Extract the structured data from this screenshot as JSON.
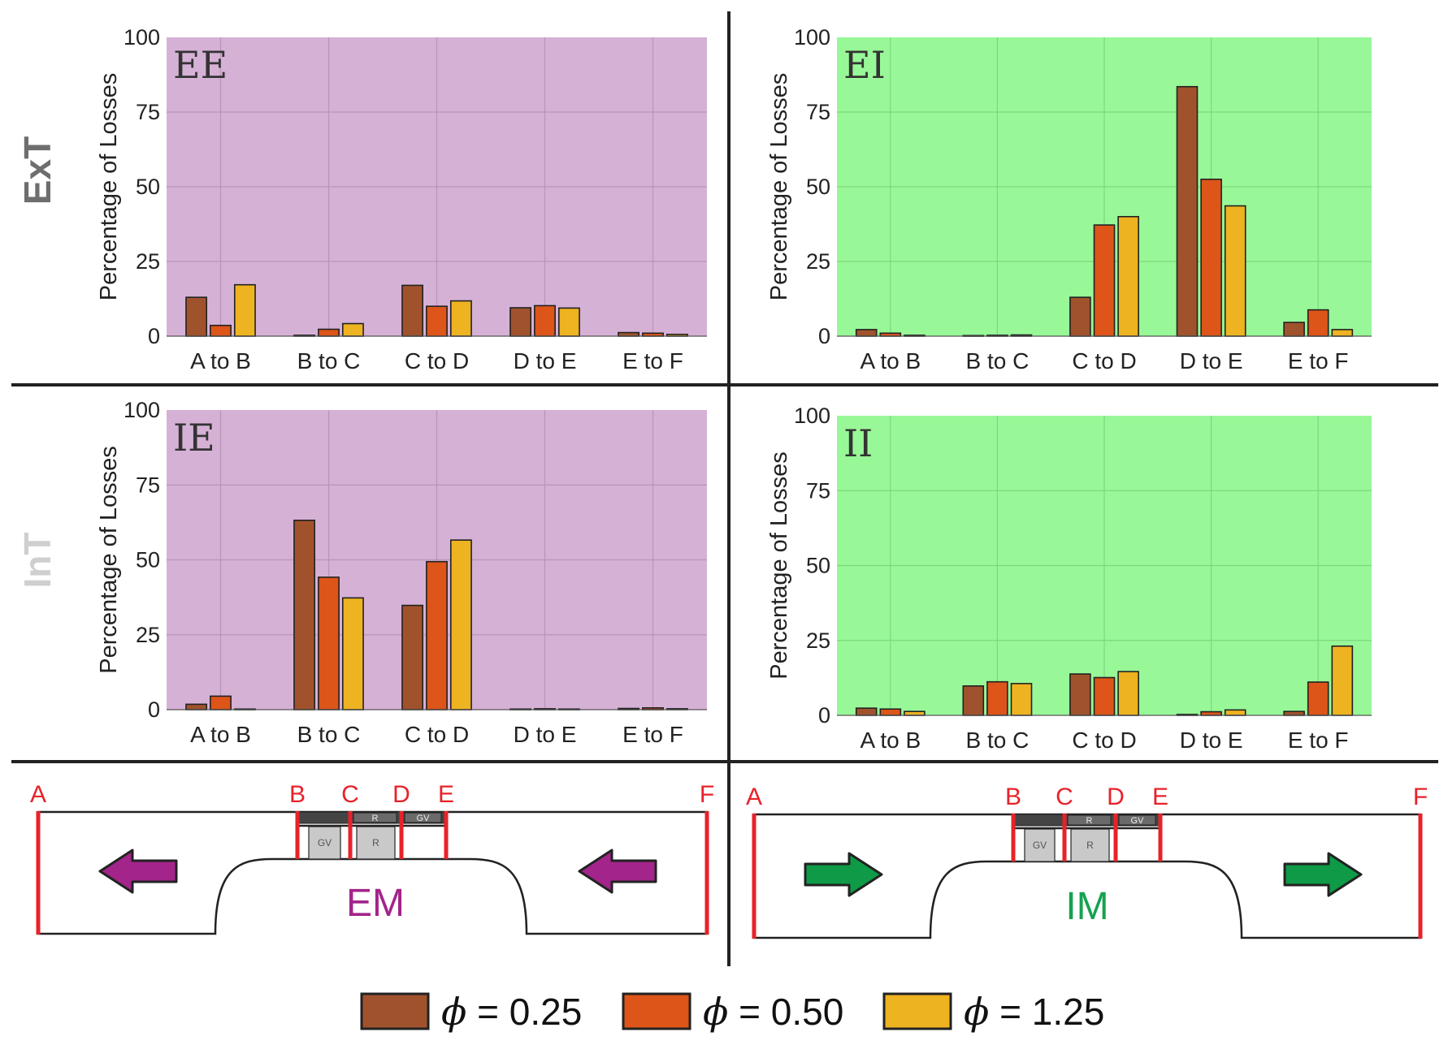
{
  "row_labels": {
    "top": "ExT",
    "bottom": "InT"
  },
  "colors": {
    "phi_025": "#a0522d",
    "phi_050": "#dd5518",
    "phi_125": "#eeb321",
    "purple_panel": "#d6b1d6",
    "green_panel": "#98f898",
    "purple_arrow": "#a3248a",
    "green_arrow": "#0e9a46",
    "boundary_red": "#e8222a",
    "em_text": "#a3248a",
    "im_text": "#14a24e",
    "ext_text": "#6e6e6e",
    "int_text": "#cfcfcf"
  },
  "chart_data": [
    {
      "type": "bar",
      "panel_label": "EE",
      "background": "purple",
      "categories": [
        "A to B",
        "B to C",
        "C to D",
        "D to E",
        "E to F"
      ],
      "series": [
        {
          "name": "ϕ = 0.25",
          "values": [
            13,
            0.3,
            17,
            9.5,
            1.2
          ]
        },
        {
          "name": "ϕ = 0.50",
          "values": [
            3.6,
            2.3,
            10,
            10.2,
            1.0
          ]
        },
        {
          "name": "ϕ = 1.25",
          "values": [
            17.2,
            4.2,
            11.8,
            9.4,
            0.6
          ]
        }
      ],
      "ylabel": "Percentage of Losses",
      "ylim": [
        0,
        100
      ],
      "yticks": [
        "0",
        "25",
        "50",
        "75",
        "100"
      ],
      "grid": true
    },
    {
      "type": "bar",
      "panel_label": "EI",
      "background": "green",
      "categories": [
        "A to B",
        "B to C",
        "C to D",
        "D to E",
        "E to F"
      ],
      "series": [
        {
          "name": "ϕ = 0.25",
          "values": [
            2.2,
            0.2,
            13,
            83.5,
            4.6
          ]
        },
        {
          "name": "ϕ = 0.50",
          "values": [
            1.0,
            0.3,
            37.2,
            52.5,
            8.8
          ]
        },
        {
          "name": "ϕ = 1.25",
          "values": [
            0.3,
            0.4,
            40,
            43.6,
            2.2
          ]
        }
      ],
      "ylabel": "Percentage of Losses",
      "ylim": [
        0,
        100
      ],
      "yticks": [
        "0",
        "25",
        "50",
        "75",
        "100"
      ],
      "grid": true
    },
    {
      "type": "bar",
      "panel_label": "IE",
      "background": "purple",
      "categories": [
        "A to B",
        "B to C",
        "C to D",
        "D to E",
        "E to F"
      ],
      "series": [
        {
          "name": "ϕ = 0.25",
          "values": [
            1.8,
            63.2,
            34.8,
            0.2,
            0.4
          ]
        },
        {
          "name": "ϕ = 0.50",
          "values": [
            4.5,
            44.2,
            49.4,
            0.3,
            0.6
          ]
        },
        {
          "name": "ϕ = 1.25",
          "values": [
            0.2,
            37.3,
            56.6,
            0.2,
            0.3
          ]
        }
      ],
      "ylabel": "Percentage of Losses",
      "ylim": [
        0,
        100
      ],
      "yticks": [
        "0",
        "25",
        "50",
        "75",
        "100"
      ],
      "grid": true
    },
    {
      "type": "bar",
      "panel_label": "II",
      "background": "green",
      "categories": [
        "A to B",
        "B to C",
        "C to D",
        "D to E",
        "E to F"
      ],
      "series": [
        {
          "name": "ϕ = 0.25",
          "values": [
            2.4,
            9.8,
            13.8,
            0.3,
            1.3
          ]
        },
        {
          "name": "ϕ = 0.50",
          "values": [
            2.1,
            11.2,
            12.6,
            1.2,
            11.1
          ]
        },
        {
          "name": "ϕ = 1.25",
          "values": [
            1.3,
            10.6,
            14.6,
            1.8,
            23.1
          ]
        }
      ],
      "ylabel": "Percentage of Losses",
      "ylim": [
        0,
        100
      ],
      "yticks": [
        "0",
        "25",
        "50",
        "75",
        "100"
      ],
      "grid": true
    }
  ],
  "schematics": [
    {
      "title": "EM",
      "station_labels": [
        "A",
        "B",
        "C",
        "D",
        "E",
        "F"
      ],
      "box_labels": [
        "GV",
        "R",
        "R",
        "GV"
      ],
      "arrow_direction": "left"
    },
    {
      "title": "IM",
      "station_labels": [
        "A",
        "B",
        "C",
        "D",
        "E",
        "F"
      ],
      "box_labels": [
        "GV",
        "R",
        "R",
        "GV"
      ],
      "arrow_direction": "right"
    }
  ],
  "legend": {
    "entries": [
      {
        "symbol": "ϕ",
        "text": " = 0.25"
      },
      {
        "symbol": "ϕ",
        "text": " = 0.50"
      },
      {
        "symbol": "ϕ",
        "text": " = 1.25"
      }
    ]
  }
}
